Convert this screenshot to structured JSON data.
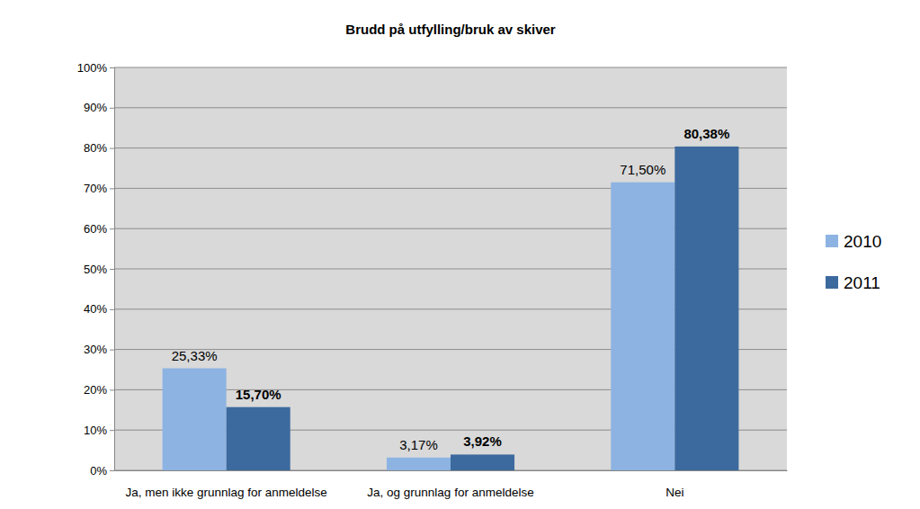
{
  "chart_data": {
    "type": "bar",
    "title": "Brudd på utfylling/bruk av skiver",
    "categories": [
      "Ja, men ikke grunnlag for anmeldelse",
      "Ja, og grunnlag for anmeldelse",
      "Nei"
    ],
    "series": [
      {
        "name": "2010",
        "color": "#8db3e2",
        "values": [
          25.33,
          3.17,
          71.5
        ],
        "value_labels": [
          "25,33%",
          "3,17%",
          "71,50%"
        ]
      },
      {
        "name": "2011",
        "color": "#3d6a9e",
        "values": [
          15.7,
          3.92,
          80.38
        ],
        "value_labels": [
          "15,70%",
          "3,92%",
          "80,38%"
        ]
      }
    ],
    "ylim": [
      0,
      100
    ],
    "yticks": [
      {
        "value": 0,
        "label": "0%"
      },
      {
        "value": 10,
        "label": "10%"
      },
      {
        "value": 20,
        "label": "20%"
      },
      {
        "value": 30,
        "label": "30%"
      },
      {
        "value": 40,
        "label": "40%"
      },
      {
        "value": 50,
        "label": "50%"
      },
      {
        "value": 60,
        "label": "60%"
      },
      {
        "value": 70,
        "label": "70%"
      },
      {
        "value": 80,
        "label": "80%"
      },
      {
        "value": 90,
        "label": "90%"
      },
      {
        "value": 100,
        "label": "100%"
      }
    ],
    "grid": true,
    "legend": "right",
    "data_labels": true
  }
}
